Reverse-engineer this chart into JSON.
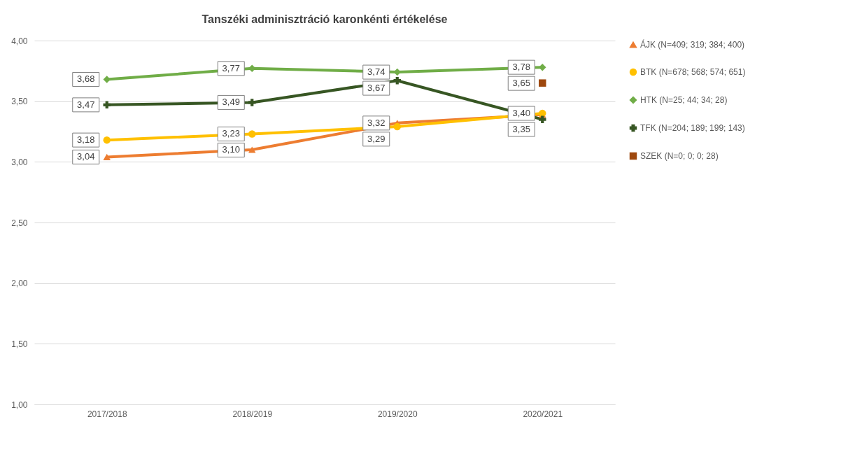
{
  "chart_data": {
    "type": "line",
    "title": "Tanszéki adminisztráció karonkénti értékelése",
    "categories": [
      "2017/2018",
      "2018/2019",
      "2019/2020",
      "2020/2021"
    ],
    "series": [
      {
        "name": "ÁJK (N=409; 319; 384; 400)",
        "color": "#ed7d31",
        "marker": "triangle",
        "values": [
          3.04,
          3.1,
          3.32,
          3.39
        ],
        "value_labels": [
          "3,04",
          "3,10",
          "3,32",
          null
        ]
      },
      {
        "name": "BTK (N=678; 568; 574; 651)",
        "color": "#ffc000",
        "marker": "circle",
        "values": [
          3.18,
          3.23,
          3.29,
          3.4
        ],
        "value_labels": [
          "3,18",
          "3,23",
          "3,29",
          "3,40"
        ]
      },
      {
        "name": "HTK (N=25; 44; 34; 28)",
        "color": "#70ad47",
        "marker": "diamond",
        "values": [
          3.68,
          3.77,
          3.74,
          3.78
        ],
        "value_labels": [
          "3,68",
          "3,77",
          "3,74",
          "3,78"
        ]
      },
      {
        "name": "TFK (N=204; 189; 199; 143)",
        "color": "#375623",
        "marker": "cross",
        "values": [
          3.47,
          3.49,
          3.67,
          3.35
        ],
        "value_labels": [
          "3,47",
          "3,49",
          "3,67",
          "3,35"
        ]
      },
      {
        "name": "SZEK (N=0; 0; 0; 28)",
        "color": "#9e480e",
        "marker": "square",
        "values": [
          null,
          null,
          null,
          3.65
        ],
        "value_labels": [
          null,
          null,
          null,
          "3,65"
        ]
      }
    ],
    "ylim": [
      1,
      4
    ],
    "yticks": [
      {
        "value": 1,
        "label": "1,00"
      },
      {
        "value": 1.5,
        "label": "1,50"
      },
      {
        "value": 2,
        "label": "2,00"
      },
      {
        "value": 2.5,
        "label": "2,50"
      },
      {
        "value": 3,
        "label": "3,00"
      },
      {
        "value": 3.5,
        "label": "3,50"
      },
      {
        "value": 4,
        "label": "4,00"
      }
    ],
    "grid": "y",
    "legend": "right",
    "line_style": "solid"
  }
}
